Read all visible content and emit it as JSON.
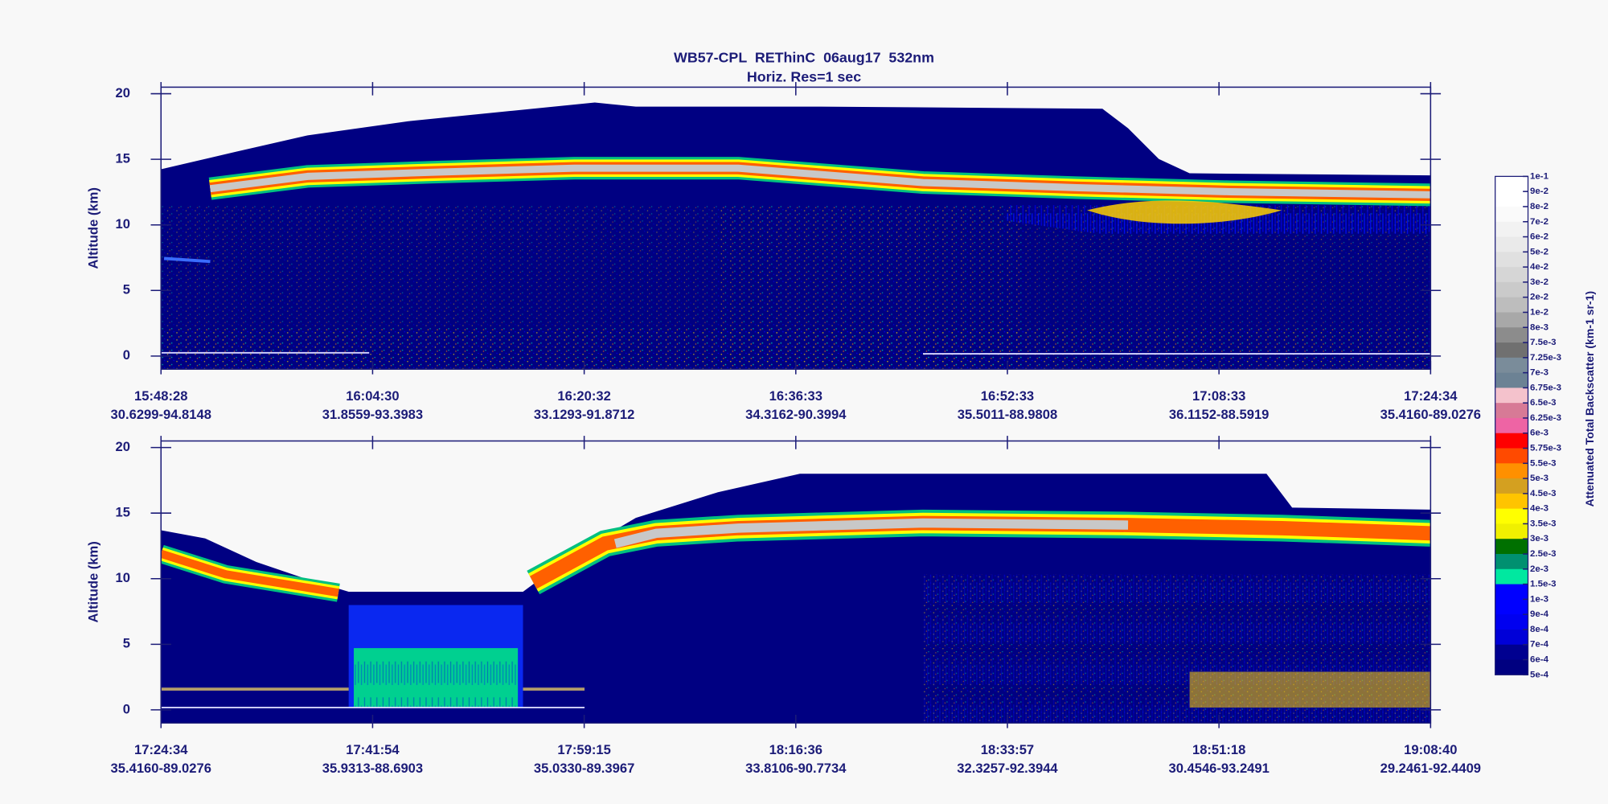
{
  "chart_data": {
    "type": "heatmap",
    "title": "WB57-CPL  REThinC  06aug17  532nm",
    "subtitle": "Horiz. Res=1 sec",
    "panels": [
      {
        "ylabel": "Altitude (km)",
        "ylim": [
          -1,
          20.5
        ],
        "yticks": [
          0,
          5,
          10,
          15,
          20
        ],
        "xticks": [
          {
            "time": "15:48:28",
            "location": "30.6299-94.8148"
          },
          {
            "time": "16:04:30",
            "location": "31.8559-93.3983"
          },
          {
            "time": "16:20:32",
            "location": "33.1293-91.8712"
          },
          {
            "time": "16:36:33",
            "location": "34.3162-90.3994"
          },
          {
            "time": "16:52:33",
            "location": "35.5011-88.9808"
          },
          {
            "time": "17:08:33",
            "location": "36.1152-88.5919"
          },
          {
            "time": "17:24:34",
            "location": "35.4160-89.0276"
          }
        ]
      },
      {
        "ylabel": "Altitude (km)",
        "ylim": [
          -1,
          20.5
        ],
        "yticks": [
          0,
          5,
          10,
          15,
          20
        ],
        "xticks": [
          {
            "time": "17:24:34",
            "location": "35.4160-89.0276"
          },
          {
            "time": "17:41:54",
            "location": "35.9313-88.6903"
          },
          {
            "time": "17:59:15",
            "location": "35.0330-89.3967"
          },
          {
            "time": "18:16:36",
            "location": "33.8106-90.7734"
          },
          {
            "time": "18:33:57",
            "location": "32.3257-92.3944"
          },
          {
            "time": "18:51:18",
            "location": "30.4546-93.2491"
          },
          {
            "time": "19:08:40",
            "location": "29.2461-92.4409"
          }
        ]
      }
    ],
    "colorbar": {
      "label": "Attenuated Total Backscatter (km-1 sr-1)",
      "ticks": [
        {
          "value": 0.1,
          "label": "1e-1"
        },
        {
          "value": 0.09,
          "label": "9e-2"
        },
        {
          "value": 0.08,
          "label": "8e-2"
        },
        {
          "value": 0.07,
          "label": "7e-2"
        },
        {
          "value": 0.06,
          "label": "6e-2"
        },
        {
          "value": 0.05,
          "label": "5e-2"
        },
        {
          "value": 0.04,
          "label": "4e-2"
        },
        {
          "value": 0.03,
          "label": "3e-2"
        },
        {
          "value": 0.02,
          "label": "2e-2"
        },
        {
          "value": 0.01,
          "label": "1e-2"
        },
        {
          "value": 0.008,
          "label": "8e-3"
        },
        {
          "value": 0.0075,
          "label": "7.5e-3"
        },
        {
          "value": 0.00725,
          "label": "7.25e-3"
        },
        {
          "value": 0.007,
          "label": "7e-3"
        },
        {
          "value": 0.00675,
          "label": "6.75e-3"
        },
        {
          "value": 0.0065,
          "label": "6.5e-3"
        },
        {
          "value": 0.00625,
          "label": "6.25e-3"
        },
        {
          "value": 0.006,
          "label": "6e-3"
        },
        {
          "value": 0.00575,
          "label": "5.75e-3"
        },
        {
          "value": 0.0055,
          "label": "5.5e-3"
        },
        {
          "value": 0.005,
          "label": "5e-3"
        },
        {
          "value": 0.0045,
          "label": "4.5e-3"
        },
        {
          "value": 0.004,
          "label": "4e-3"
        },
        {
          "value": 0.0035,
          "label": "3.5e-3"
        },
        {
          "value": 0.003,
          "label": "3e-3"
        },
        {
          "value": 0.0025,
          "label": "2.5e-3"
        },
        {
          "value": 0.002,
          "label": "2e-3"
        },
        {
          "value": 0.0015,
          "label": "1.5e-3"
        },
        {
          "value": 0.001,
          "label": "1e-3"
        },
        {
          "value": 0.0009,
          "label": "9e-4"
        },
        {
          "value": 0.0008,
          "label": "8e-4"
        },
        {
          "value": 0.0007,
          "label": "7e-4"
        },
        {
          "value": 0.0006,
          "label": "6e-4"
        },
        {
          "value": 0.0005,
          "label": "5e-4"
        }
      ],
      "colors": [
        "#ffffff",
        "#ffffff",
        "#fafafa",
        "#f2f2f2",
        "#eaeaea",
        "#e0e0e0",
        "#d6d6d6",
        "#cacaca",
        "#bdbdbd",
        "#a8a8a8",
        "#8c8c8c",
        "#707070",
        "#7a8c9a",
        "#6c8294",
        "#f4c2cc",
        "#d77a96",
        "#ee64a4",
        "#ff0000",
        "#ff4a00",
        "#ff9000",
        "#d4a020",
        "#ffc400",
        "#ffff00",
        "#f0f000",
        "#007000",
        "#009070",
        "#00e8a0",
        "#0000ff",
        "#0000ff",
        "#0000f0",
        "#0000d8",
        "#000090",
        "#000080"
      ]
    }
  }
}
